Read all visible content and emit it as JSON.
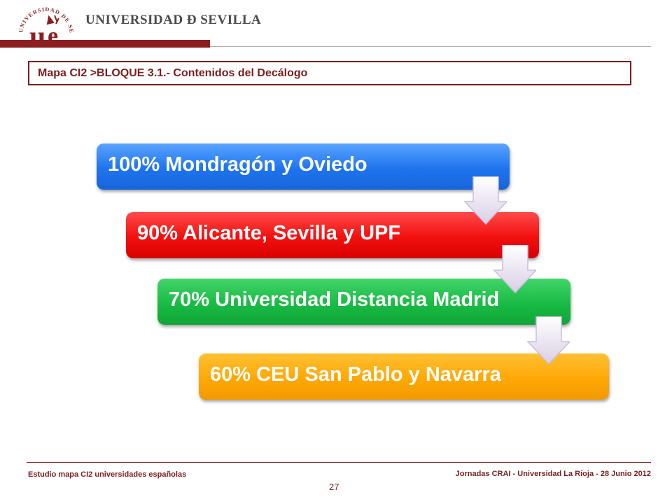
{
  "header": {
    "university_name": "UNIVERSIDAD Ð SEVILLA",
    "seal_text": "UNIVERSIDAD DE SEVILLA",
    "brand_color": "#8b1f1f"
  },
  "slide": {
    "title": "Mapa CI2 >BLOQUE 3.1.- Contenidos del Decálogo"
  },
  "steps": [
    {
      "label": "100%  Mondragón y Oviedo",
      "color": "#1e74ee"
    },
    {
      "label": "90%  Alicante, Sevilla y UPF",
      "color": "#f20f0f"
    },
    {
      "label": "70%  Universidad  Distancia Madrid",
      "color": "#18bb44"
    },
    {
      "label": "60%  CEU San Pablo y Navarra",
      "color": "#ffa805"
    }
  ],
  "footer": {
    "left": "Estudio mapa CI2 universidades españolas",
    "right": "Jornadas CRAI - Universidad La Rioja - 28 Junio 2012",
    "page_number": "27"
  }
}
